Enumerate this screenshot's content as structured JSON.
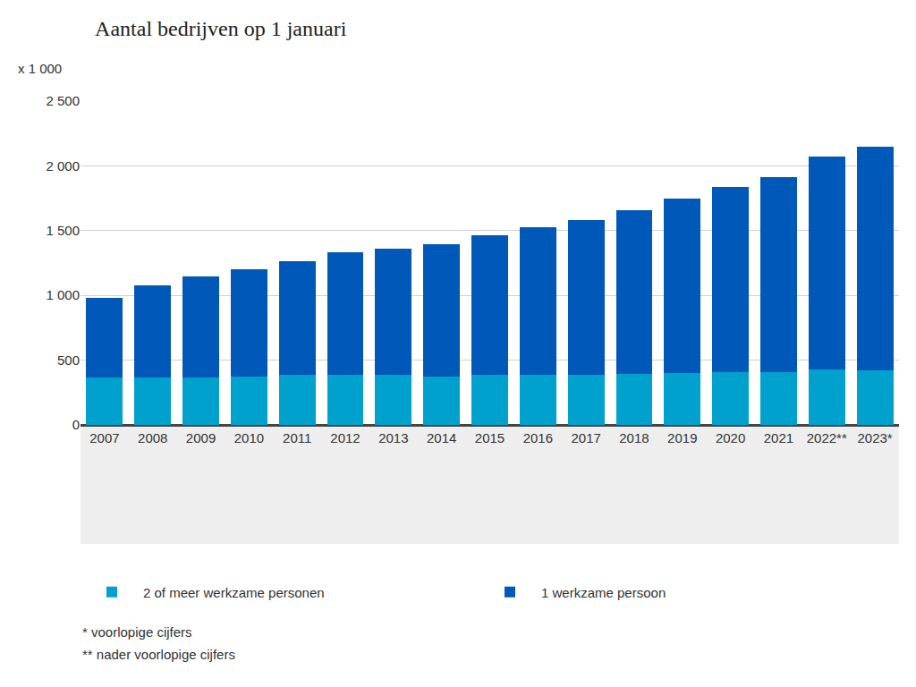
{
  "chart_data": {
    "type": "bar",
    "title": "Aantal bedrijven op 1 januari",
    "annotations": [
      "x 1 000",
      "* voorlopige cijfers",
      "** nader voorlopige cijfers"
    ],
    "categories": [
      "2007",
      "2008",
      "2009",
      "2010",
      "2011",
      "2012",
      "2013",
      "2014",
      "2015",
      "2016",
      "2017",
      "2018",
      "2019",
      "2020",
      "2021",
      "2022**",
      "2023*"
    ],
    "series": [
      {
        "name": "2 of meer werkzame personen",
        "color": "#00a1cd",
        "values": [
          365,
          365,
          365,
          375,
          385,
          385,
          385,
          375,
          385,
          385,
          385,
          395,
          400,
          405,
          410,
          430,
          420
        ]
      },
      {
        "name": "1 werkzame persoon",
        "color": "#0058b8",
        "values": [
          615,
          710,
          780,
          830,
          880,
          950,
          975,
          1020,
          1080,
          1140,
          1195,
          1260,
          1345,
          1435,
          1500,
          1645,
          1725
        ]
      }
    ],
    "stacked": true,
    "ylim": [
      0,
      2500
    ],
    "yticks": [
      0,
      500,
      {
        "value": 1000,
        "label": "1 000"
      },
      {
        "value": 1500,
        "label": "1 500"
      },
      {
        "value": 2000,
        "label": "2 000"
      },
      {
        "value": 2500,
        "label": "2 500"
      }
    ],
    "grid": true,
    "legend": "bottom"
  }
}
